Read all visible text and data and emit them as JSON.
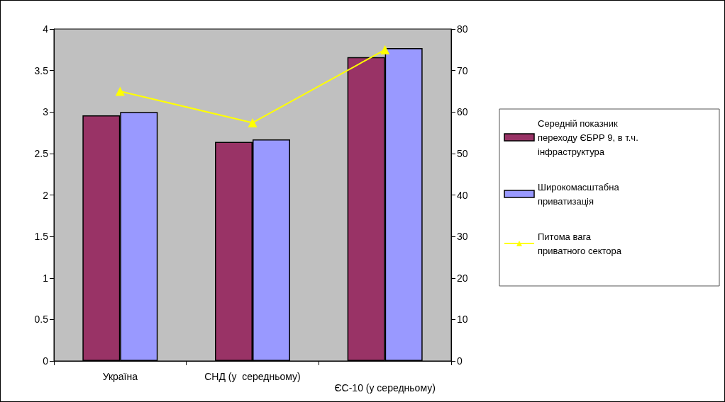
{
  "chart_data": {
    "type": "bar",
    "categories": [
      "Україна",
      "СНД (у  середньому)",
      "ЄС-10 (у середньому)"
    ],
    "series": [
      {
        "name": "Середній показник переходу ЄБРР 9, в т.ч. інфраструктура",
        "color": "#993366",
        "values": [
          2.96,
          2.64,
          3.66
        ]
      },
      {
        "name": "Широкомасштабна приватизація",
        "color": "#9999ff",
        "values": [
          3.0,
          2.67,
          3.77
        ]
      },
      {
        "name": "Питома вага приватного сектора",
        "type": "line",
        "axis": "y2",
        "color": "#ffff00",
        "marker": "triangle",
        "values": [
          65,
          57.4,
          75
        ]
      }
    ],
    "ylim": [
      0,
      4
    ],
    "yticks": [
      0,
      0.5,
      1,
      1.5,
      2,
      2.5,
      3,
      3.5,
      4
    ],
    "y2lim": [
      0,
      80
    ],
    "y2ticks": [
      0,
      10,
      20,
      30,
      40,
      50,
      60,
      70,
      80
    ],
    "grid": false,
    "legend": "right"
  }
}
